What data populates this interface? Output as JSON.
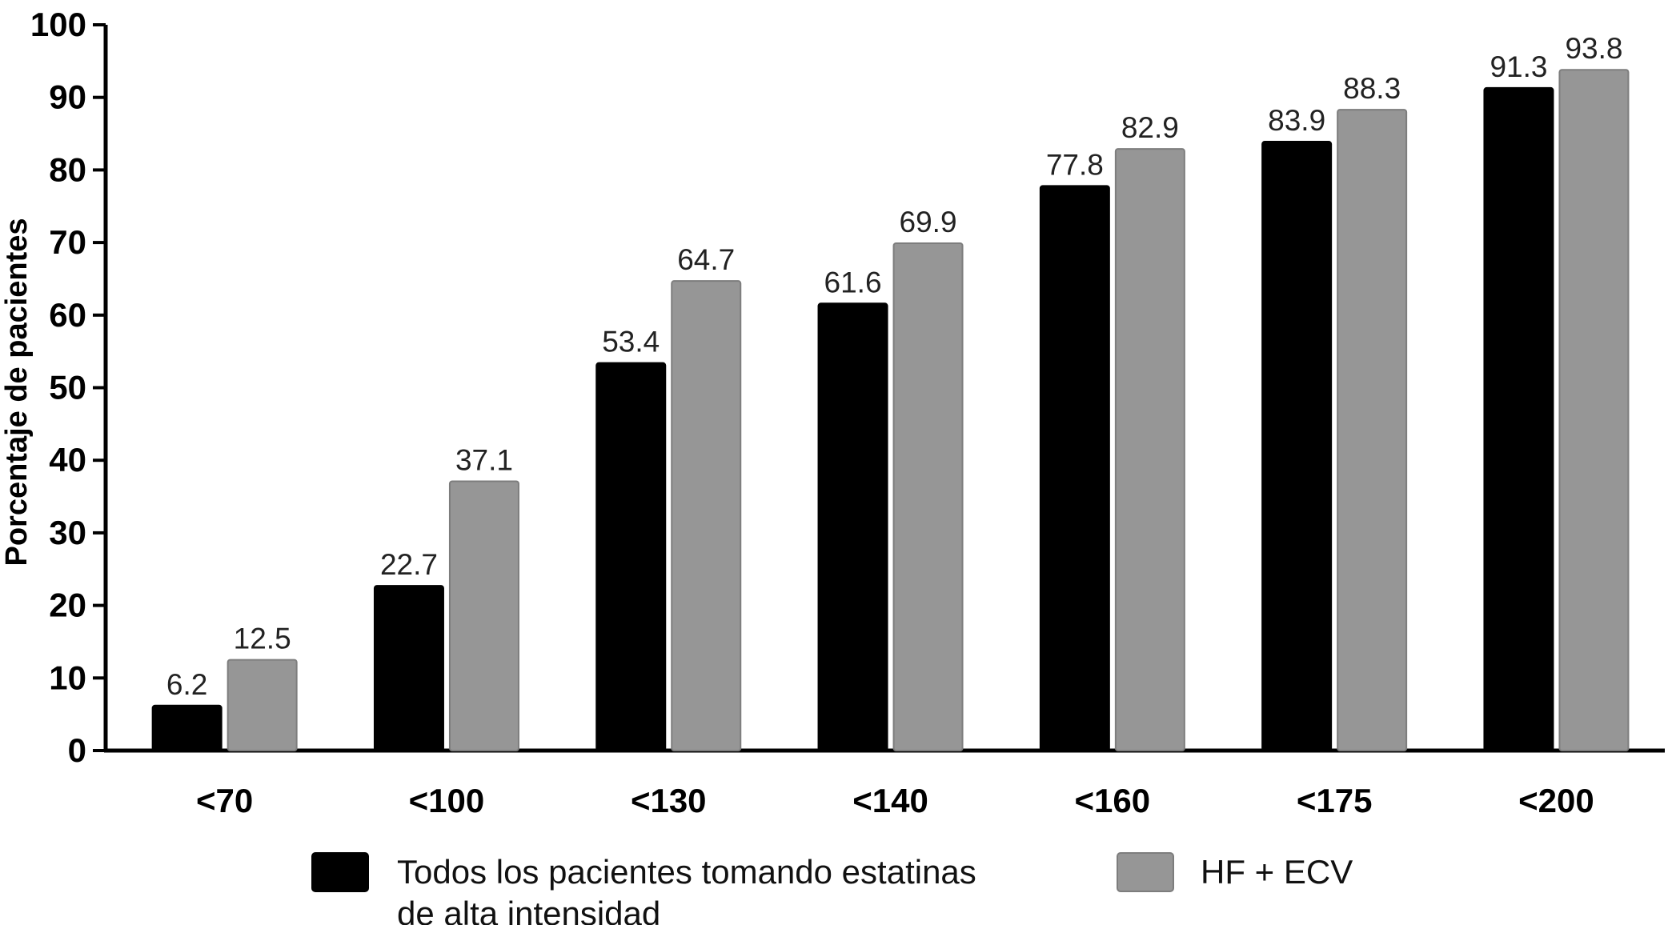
{
  "chart_data": {
    "type": "bar",
    "title": "",
    "xlabel": "",
    "ylabel": "Porcentaje de pacientes",
    "ylim": [
      0,
      100
    ],
    "yticks": [
      0,
      10,
      20,
      30,
      40,
      50,
      60,
      70,
      80,
      90,
      100
    ],
    "categories": [
      "<70",
      "<100",
      "<130",
      "<140",
      "<160",
      "<175",
      "<200"
    ],
    "series": [
      {
        "name": "Todos los pacientes tomando estatinas de alta intensidad",
        "legend_lines": [
          "Todos los pacientes tomando estatinas",
          "de alta intensidad"
        ],
        "color": "#000000",
        "values": [
          6.2,
          22.7,
          53.4,
          61.6,
          77.8,
          83.9,
          91.3
        ]
      },
      {
        "name": "HF + ECV",
        "legend_lines": [
          "HF + ECV"
        ],
        "color": "#969696",
        "values": [
          12.5,
          37.1,
          64.7,
          69.9,
          82.9,
          88.3,
          93.8
        ]
      }
    ],
    "data_labels": true,
    "grid": false,
    "legend_position": "bottom"
  }
}
